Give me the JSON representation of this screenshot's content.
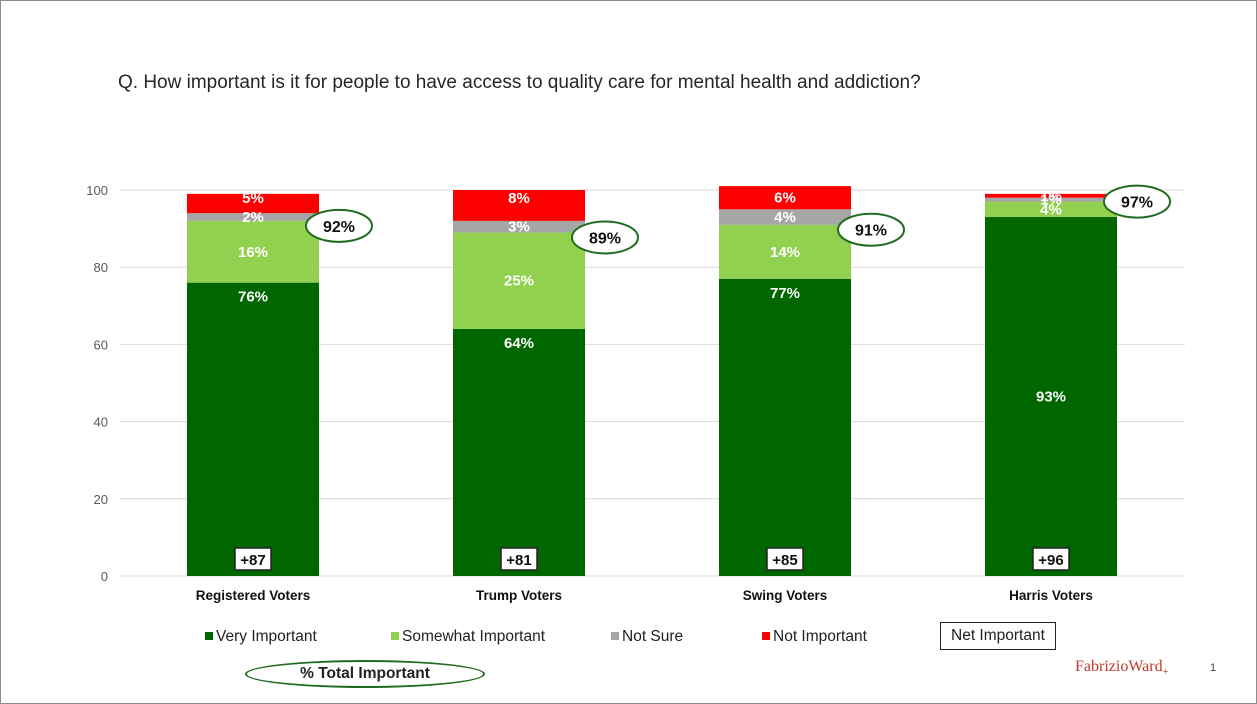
{
  "title": "Q. How important is it for people to have access to quality care for mental health and addiction?",
  "chart_data": {
    "type": "bar",
    "stacked": true,
    "categories": [
      "Registered Voters",
      "Trump Voters",
      "Swing Voters",
      "Harris Voters"
    ],
    "series": [
      {
        "name": "Very Important",
        "color": "#006600",
        "values": [
          76,
          64,
          77,
          93
        ],
        "labels": [
          "76%",
          "64%",
          "77%",
          "93%"
        ]
      },
      {
        "name": "Somewhat Important",
        "color": "#92d050",
        "values": [
          16,
          25,
          14,
          4
        ],
        "labels": [
          "16%",
          "25%",
          "14%",
          "4%"
        ]
      },
      {
        "name": "Not Sure",
        "color": "#a6a6a6",
        "values": [
          2,
          3,
          4,
          1
        ],
        "labels": [
          "2%",
          "3%",
          "4%",
          "1%"
        ]
      },
      {
        "name": "Not Important",
        "color": "#ff0000",
        "values": [
          5,
          8,
          6,
          1
        ],
        "labels": [
          "5%",
          "8%",
          "6%",
          "1%"
        ]
      }
    ],
    "total_important": [
      "92%",
      "89%",
      "91%",
      "97%"
    ],
    "net_important": [
      "+87",
      "+81",
      "+85",
      "+96"
    ],
    "yticks": [
      "0",
      "20",
      "40",
      "60",
      "80",
      "100"
    ],
    "ylim": [
      0,
      100
    ],
    "grid": true,
    "legend": "bottom"
  },
  "legend": {
    "net_label": "Net Important",
    "total_label": "% Total Important"
  },
  "brand": {
    "name": "FabrizioWard",
    "mark": "+"
  },
  "page_number": "1"
}
